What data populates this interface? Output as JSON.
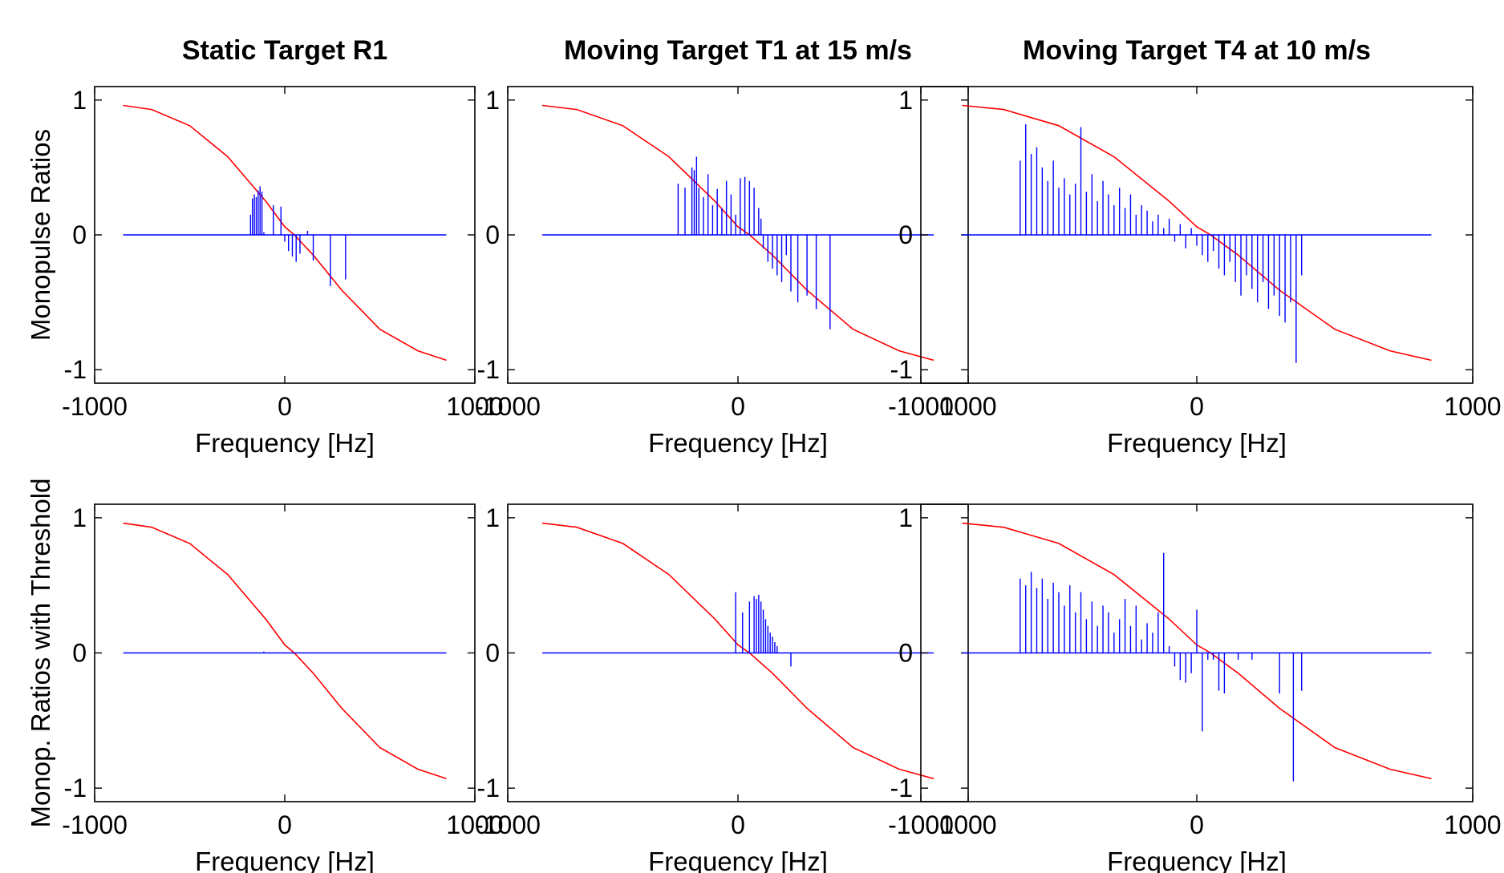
{
  "figure": {
    "ylabels": [
      "Monopulse Ratios",
      "Monop. Ratios with Threshold"
    ]
  },
  "colors": {
    "reference": "#ff0000",
    "measured": "#0000ff"
  },
  "chart_data": [
    {
      "type": "line",
      "title": "Static Target R1",
      "xlabel": "Frequency [Hz]",
      "ylabel": "Monopulse Ratios",
      "xlim": [
        -1000,
        1000
      ],
      "ylim": [
        -1.1,
        1.1
      ],
      "xticks": [
        -1000,
        0,
        1000
      ],
      "yticks": [
        -1,
        0,
        1
      ],
      "grid": false,
      "series": [
        {
          "role": "reference",
          "color": "#ff0000",
          "x": [
            -850,
            -700,
            -500,
            -300,
            -100,
            0,
            50,
            150,
            300,
            500,
            700,
            850
          ],
          "y": [
            0.96,
            0.93,
            0.81,
            0.58,
            0.25,
            0.06,
            0.0,
            -0.15,
            -0.41,
            -0.7,
            -0.86,
            -0.93
          ]
        },
        {
          "role": "measured",
          "color": "#0000ff",
          "x": [
            -180,
            -170,
            -160,
            -150,
            -140,
            -130,
            -120,
            -110,
            -60,
            -20,
            0,
            20,
            40,
            60,
            80,
            120,
            150,
            240,
            320
          ],
          "y": [
            0.15,
            0.27,
            0.3,
            0.28,
            0.33,
            0.36,
            0.32,
            0.02,
            0.22,
            0.21,
            -0.05,
            -0.12,
            -0.16,
            -0.2,
            -0.14,
            0.03,
            -0.19,
            -0.38,
            -0.33
          ]
        }
      ]
    },
    {
      "type": "line",
      "title": "Moving Target T1 at 15 m/s",
      "xlabel": "Frequency [Hz]",
      "ylabel": "",
      "xlim": [
        -1000,
        1000
      ],
      "ylim": [
        -1.1,
        1.1
      ],
      "xticks": [
        -1000,
        0,
        1000
      ],
      "yticks": [
        -1,
        0,
        1
      ],
      "grid": false,
      "series": [
        {
          "role": "reference",
          "color": "#ff0000",
          "x": [
            -850,
            -700,
            -500,
            -300,
            -100,
            0,
            50,
            150,
            300,
            500,
            700,
            850
          ],
          "y": [
            0.96,
            0.93,
            0.81,
            0.58,
            0.25,
            0.06,
            0.0,
            -0.15,
            -0.41,
            -0.7,
            -0.86,
            -0.93
          ]
        },
        {
          "role": "measured",
          "color": "#0000ff",
          "x": [
            -260,
            -230,
            -200,
            -190,
            -180,
            -170,
            -150,
            -130,
            -110,
            -90,
            -70,
            -50,
            -30,
            -10,
            10,
            30,
            50,
            70,
            90,
            100,
            110,
            130,
            150,
            170,
            190,
            210,
            230,
            260,
            300,
            340,
            400
          ],
          "y": [
            0.38,
            0.35,
            0.5,
            0.48,
            0.58,
            0.35,
            0.28,
            0.45,
            0.22,
            0.34,
            0.2,
            0.4,
            0.3,
            0.15,
            0.42,
            0.43,
            0.4,
            0.35,
            0.2,
            0.12,
            -0.1,
            -0.2,
            -0.25,
            -0.3,
            -0.35,
            -0.15,
            -0.42,
            -0.5,
            -0.45,
            -0.55,
            -0.7
          ]
        }
      ]
    },
    {
      "type": "line",
      "title": "Moving Target T4 at 10 m/s",
      "xlabel": "Frequency [Hz]",
      "ylabel": "",
      "xlim": [
        -1000,
        1000
      ],
      "ylim": [
        -1.1,
        1.1
      ],
      "xticks": [
        -1000,
        0,
        1000
      ],
      "yticks": [
        -1,
        0,
        1
      ],
      "grid": false,
      "series": [
        {
          "role": "reference",
          "color": "#ff0000",
          "x": [
            -850,
            -700,
            -500,
            -300,
            -100,
            0,
            50,
            150,
            300,
            500,
            700,
            850
          ],
          "y": [
            0.96,
            0.93,
            0.81,
            0.58,
            0.25,
            0.06,
            0.0,
            -0.15,
            -0.41,
            -0.7,
            -0.86,
            -0.93
          ]
        },
        {
          "role": "measured",
          "color": "#0000ff",
          "x": [
            -640,
            -620,
            -600,
            -580,
            -560,
            -540,
            -520,
            -500,
            -480,
            -460,
            -440,
            -420,
            -400,
            -380,
            -360,
            -340,
            -320,
            -300,
            -280,
            -260,
            -240,
            -220,
            -200,
            -180,
            -160,
            -140,
            -120,
            -100,
            -80,
            -60,
            -40,
            -20,
            0,
            20,
            40,
            60,
            80,
            100,
            120,
            140,
            160,
            180,
            200,
            220,
            240,
            260,
            280,
            300,
            320,
            340,
            360,
            380
          ],
          "y": [
            0.55,
            0.82,
            0.6,
            0.65,
            0.5,
            0.4,
            0.55,
            0.35,
            0.42,
            0.3,
            0.38,
            0.8,
            0.32,
            0.45,
            0.25,
            0.4,
            0.3,
            0.22,
            0.35,
            0.2,
            0.3,
            0.15,
            0.22,
            0.18,
            0.1,
            0.15,
            0.05,
            0.12,
            -0.05,
            0.08,
            -0.1,
            0.05,
            -0.08,
            -0.15,
            -0.2,
            -0.12,
            -0.25,
            -0.3,
            -0.2,
            -0.35,
            -0.45,
            -0.3,
            -0.4,
            -0.5,
            -0.35,
            -0.55,
            -0.45,
            -0.6,
            -0.65,
            -0.5,
            -0.95,
            -0.3
          ]
        }
      ]
    },
    {
      "type": "line",
      "title": "",
      "xlabel": "Frequency [Hz]",
      "ylabel": "Monop. Ratios with Threshold",
      "xlim": [
        -1000,
        1000
      ],
      "ylim": [
        -1.1,
        1.1
      ],
      "xticks": [
        -1000,
        0,
        1000
      ],
      "yticks": [
        -1,
        0,
        1
      ],
      "grid": false,
      "series": [
        {
          "role": "reference",
          "color": "#ff0000",
          "x": [
            -850,
            -700,
            -500,
            -300,
            -100,
            0,
            50,
            150,
            300,
            500,
            700,
            850
          ],
          "y": [
            0.96,
            0.93,
            0.81,
            0.58,
            0.25,
            0.06,
            0.0,
            -0.15,
            -0.41,
            -0.7,
            -0.86,
            -0.93
          ]
        },
        {
          "role": "measured",
          "color": "#0000ff",
          "x": [
            -110
          ],
          "y": [
            0.01
          ]
        }
      ]
    },
    {
      "type": "line",
      "title": "",
      "xlabel": "Frequency [Hz]",
      "ylabel": "",
      "xlim": [
        -1000,
        1000
      ],
      "ylim": [
        -1.1,
        1.1
      ],
      "xticks": [
        -1000,
        0,
        1000
      ],
      "yticks": [
        -1,
        0,
        1
      ],
      "grid": false,
      "series": [
        {
          "role": "reference",
          "color": "#ff0000",
          "x": [
            -850,
            -700,
            -500,
            -300,
            -100,
            0,
            50,
            150,
            300,
            500,
            700,
            850
          ],
          "y": [
            0.96,
            0.93,
            0.81,
            0.58,
            0.25,
            0.06,
            0.0,
            -0.15,
            -0.41,
            -0.7,
            -0.86,
            -0.93
          ]
        },
        {
          "role": "measured",
          "color": "#0000ff",
          "x": [
            -10,
            20,
            50,
            70,
            80,
            90,
            100,
            110,
            120,
            130,
            140,
            150,
            160,
            170,
            230
          ],
          "y": [
            0.45,
            0.3,
            0.38,
            0.42,
            0.4,
            0.43,
            0.38,
            0.32,
            0.25,
            0.2,
            0.15,
            0.12,
            0.08,
            0.05,
            -0.1
          ]
        }
      ]
    },
    {
      "type": "line",
      "title": "",
      "xlabel": "Frequency [Hz]",
      "ylabel": "",
      "xlim": [
        -1000,
        1000
      ],
      "ylim": [
        -1.1,
        1.1
      ],
      "xticks": [
        -1000,
        0,
        1000
      ],
      "yticks": [
        -1,
        0,
        1
      ],
      "grid": false,
      "series": [
        {
          "role": "reference",
          "color": "#ff0000",
          "x": [
            -850,
            -700,
            -500,
            -300,
            -100,
            0,
            50,
            150,
            300,
            500,
            700,
            850
          ],
          "y": [
            0.96,
            0.93,
            0.81,
            0.58,
            0.25,
            0.06,
            0.0,
            -0.15,
            -0.41,
            -0.7,
            -0.86,
            -0.93
          ]
        },
        {
          "role": "measured",
          "color": "#0000ff",
          "x": [
            -640,
            -620,
            -600,
            -580,
            -560,
            -540,
            -520,
            -500,
            -480,
            -460,
            -440,
            -420,
            -400,
            -380,
            -360,
            -340,
            -320,
            -300,
            -280,
            -260,
            -240,
            -220,
            -200,
            -180,
            -160,
            -140,
            -120,
            -100,
            -80,
            -60,
            -40,
            -20,
            0,
            20,
            40,
            60,
            80,
            100,
            150,
            200,
            300,
            350,
            380
          ],
          "y": [
            0.55,
            0.5,
            0.6,
            0.48,
            0.55,
            0.4,
            0.52,
            0.45,
            0.35,
            0.5,
            0.3,
            0.45,
            0.25,
            0.38,
            0.2,
            0.35,
            0.3,
            0.15,
            0.25,
            0.4,
            0.2,
            0.35,
            0.1,
            0.22,
            0.15,
            0.3,
            0.74,
            0.05,
            -0.1,
            -0.2,
            -0.22,
            -0.15,
            0.32,
            -0.58,
            -0.05,
            -0.05,
            -0.28,
            -0.3,
            -0.05,
            -0.05,
            -0.3,
            -0.95,
            -0.28
          ]
        }
      ]
    }
  ]
}
